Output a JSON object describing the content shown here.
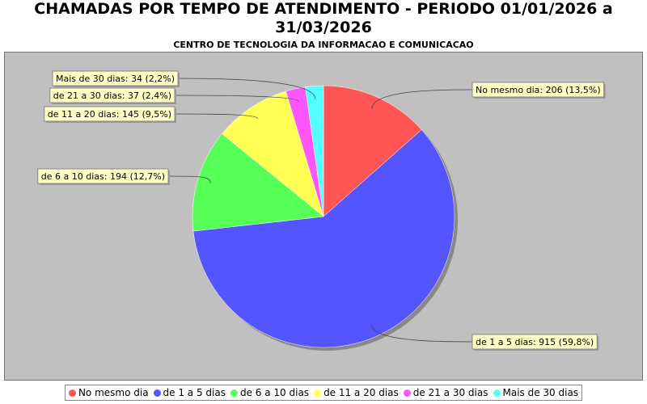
{
  "chart_data": {
    "type": "pie",
    "title": "CHAMADAS POR TEMPO DE ATENDIMENTO - PERIODO 01/01/2026 a 31/03/2026",
    "subtitle": "CENTRO DE TECNOLOGIA DA INFORMACAO E COMUNICACAO",
    "categories": [
      "No mesmo dia",
      "de 1 a 5 dias",
      "de 6 a 10 dias",
      "de 11 a 20 dias",
      "de 21 a 30 dias",
      "Mais de 30 dias"
    ],
    "values": [
      206,
      915,
      194,
      145,
      37,
      34
    ],
    "value_labels": [
      "No mesmo dia: 206 (13,5%)",
      "de 1 a 5 dias: 915 (59,8%)",
      "de 6 a 10 dias: 194 (12,7%)",
      "de 11 a 20 dias: 145 (9,5%)",
      "de 21 a 30 dias: 37 (2,4%)",
      "Mais de 30 dias: 34 (2,2%)"
    ],
    "colors": [
      "#ff5555",
      "#5555ff",
      "#55ff55",
      "#ffff55",
      "#ff55ff",
      "#55ffff"
    ],
    "legend": "bottom"
  }
}
